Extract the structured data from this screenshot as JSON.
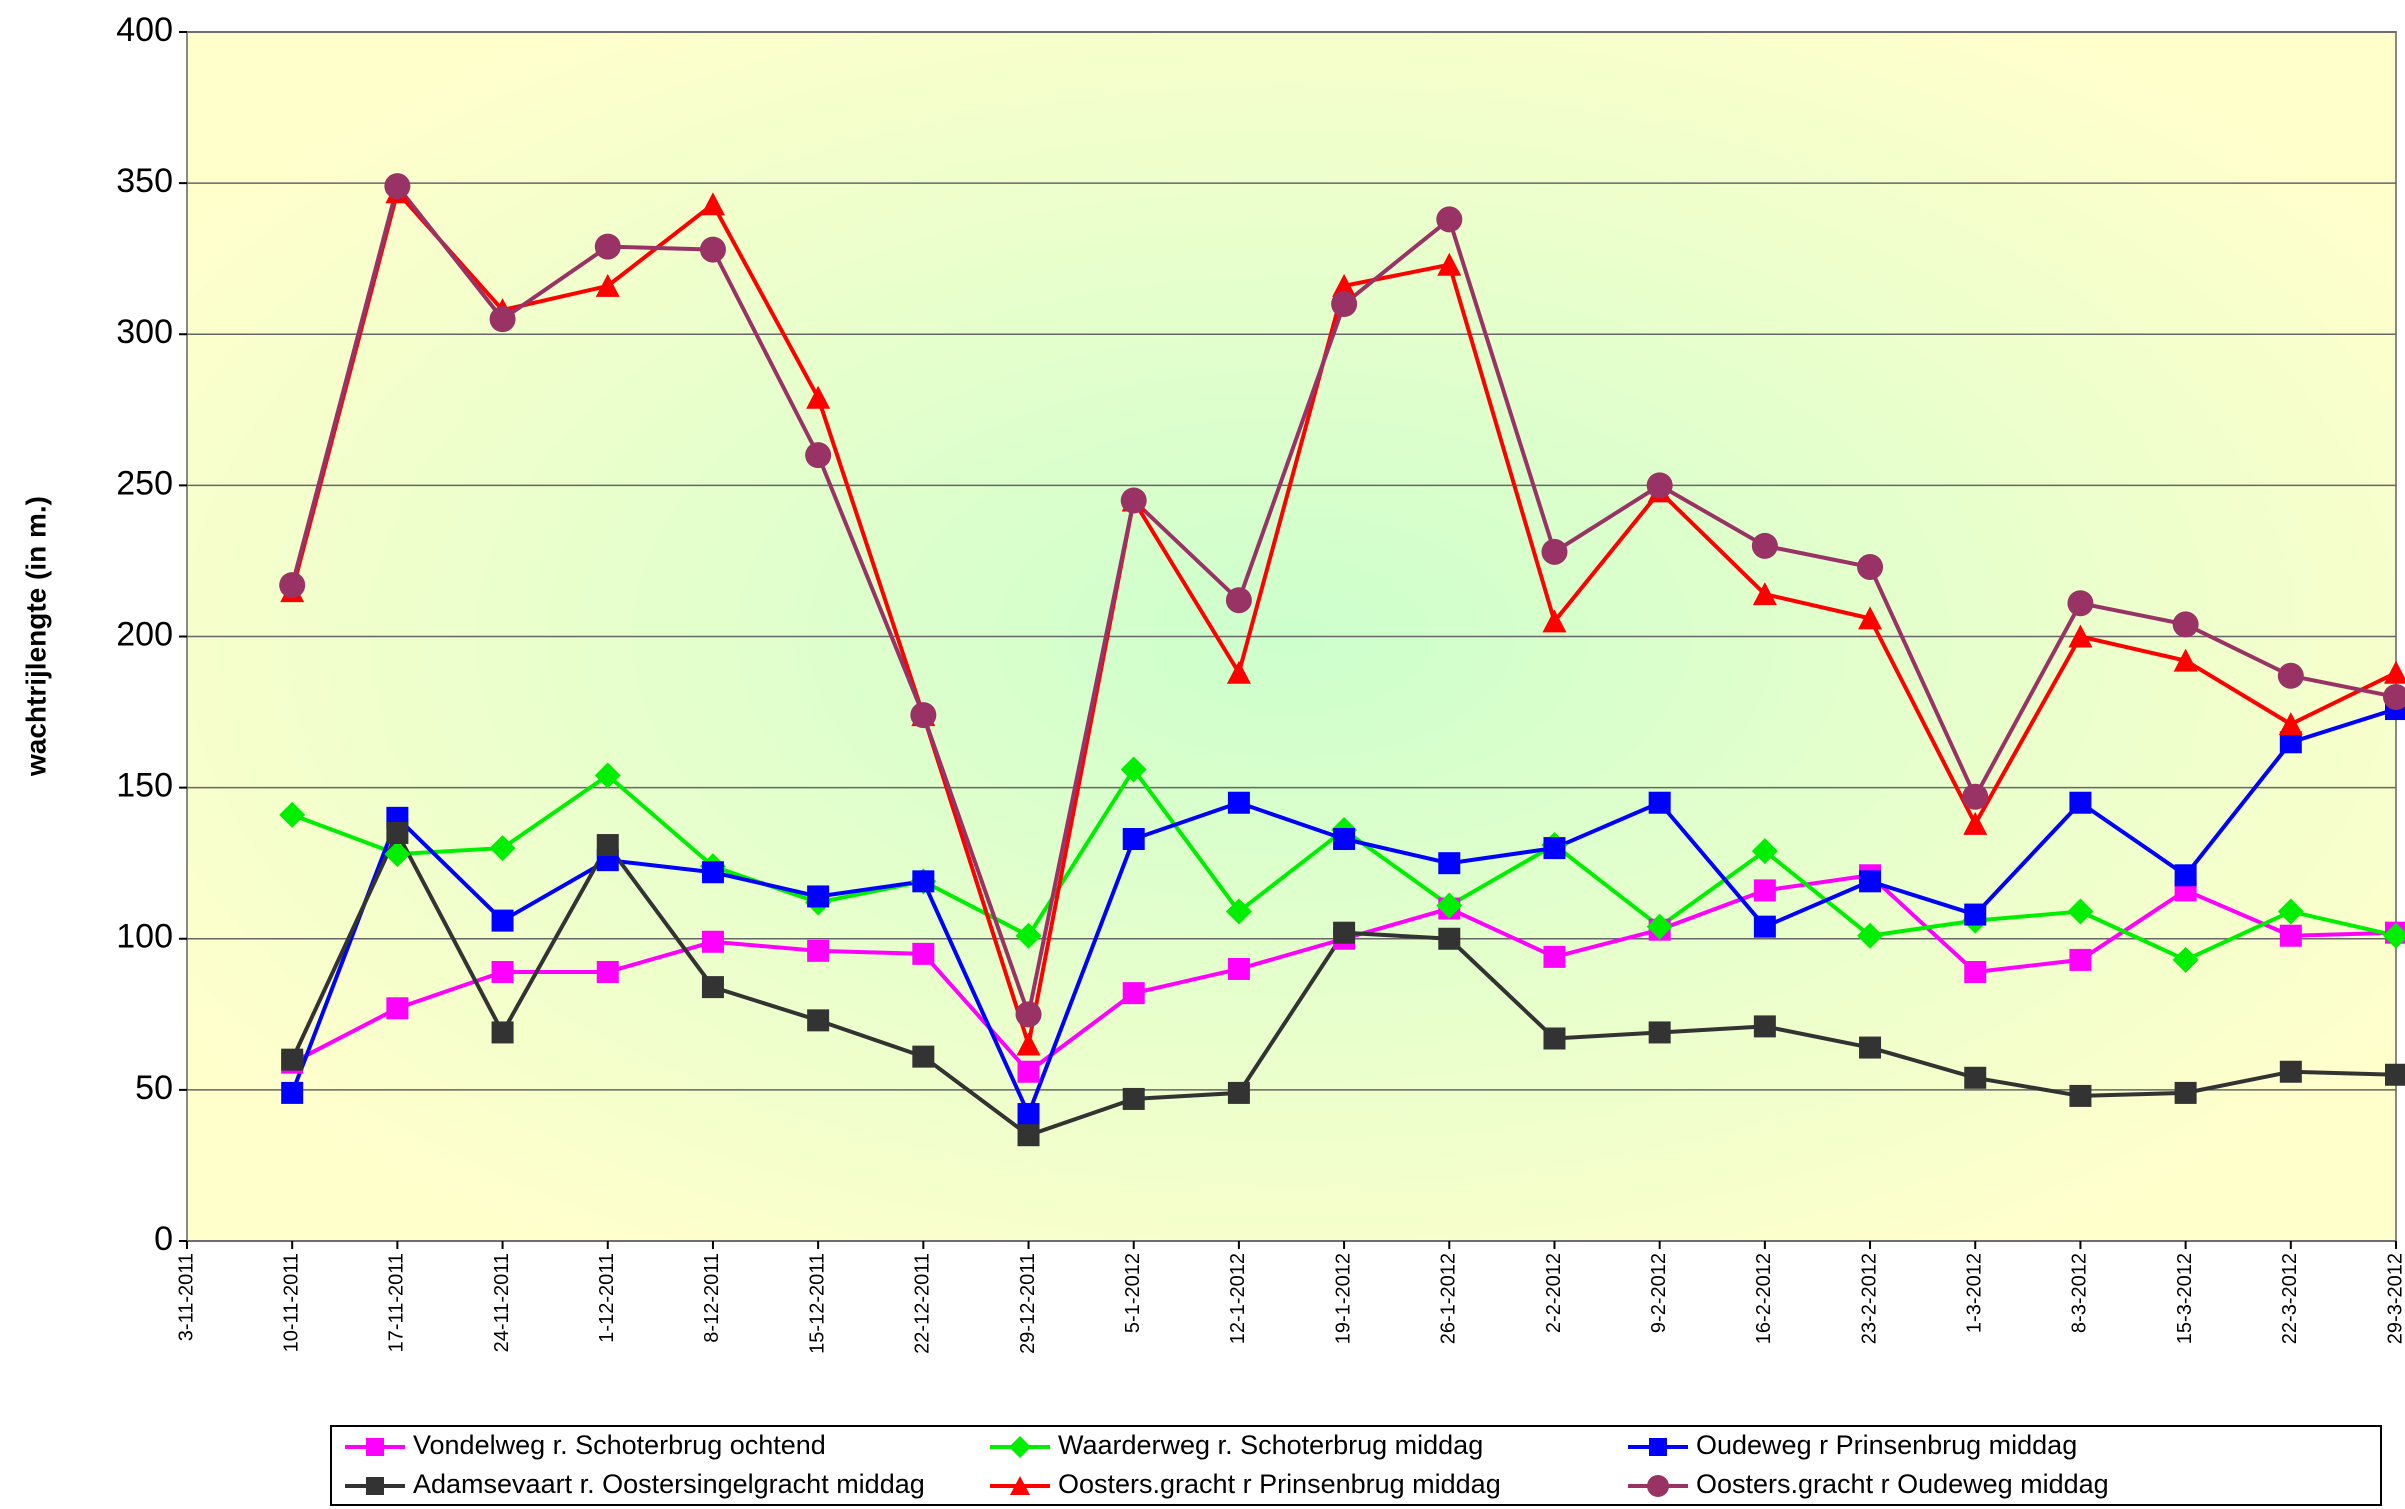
{
  "chart_data": {
    "type": "line",
    "y_label": "wachtrijlengte (in m.)",
    "categories": [
      "3-11-2011",
      "10-11-2011",
      "17-11-2011",
      "24-11-2011",
      "1-12-2011",
      "8-12-2011",
      "15-12-2011",
      "22-12-2011",
      "29-12-2011",
      "5-1-2012",
      "12-1-2012",
      "19-1-2012",
      "26-1-2012",
      "2-2-2012",
      "9-2-2012",
      "16-2-2012",
      "23-2-2012",
      "1-3-2012",
      "8-3-2012",
      "15-3-2012",
      "22-3-2012",
      "29-3-2012"
    ],
    "ylim": [
      0,
      400
    ],
    "yticks": [
      0,
      50,
      100,
      150,
      200,
      250,
      300,
      350,
      400
    ],
    "grid": true,
    "legend": "bottom",
    "series": [
      {
        "name": "Vondelweg r. Schoterbrug ochtend",
        "color": "#ff00ff",
        "marker": "square",
        "values": [
          null,
          59,
          77,
          89,
          89,
          99,
          96,
          95,
          56,
          82,
          90,
          100,
          110,
          94,
          103,
          116,
          121,
          89,
          93,
          116,
          101,
          102
        ]
      },
      {
        "name": "Waarderweg r. Schoterbrug middag",
        "color": "#00ee00",
        "marker": "diamond",
        "values": [
          null,
          141,
          128,
          130,
          154,
          124,
          112,
          119,
          101,
          156,
          109,
          136,
          111,
          131,
          104,
          129,
          101,
          106,
          109,
          93,
          109,
          101
        ]
      },
      {
        "name": "Oudeweg r Prinsenbrug middag",
        "color": "#0000ff",
        "marker": "square",
        "values": [
          null,
          49,
          140,
          106,
          126,
          122,
          114,
          119,
          42,
          133,
          145,
          133,
          125,
          130,
          145,
          104,
          119,
          108,
          145,
          121,
          165,
          176
        ]
      },
      {
        "name": "Adamsevaart r. Oostersingelgracht middag",
        "color": "#333333",
        "marker": "square",
        "values": [
          null,
          60,
          135,
          69,
          131,
          84,
          73,
          61,
          35,
          47,
          49,
          102,
          100,
          67,
          69,
          71,
          64,
          54,
          48,
          49,
          56,
          55
        ]
      },
      {
        "name": "Oosters.gracht r Prinsenbrug middag",
        "color": "#ff0000",
        "marker": "triangle",
        "values": [
          null,
          215,
          347,
          308,
          316,
          343,
          279,
          174,
          65,
          245,
          188,
          316,
          323,
          205,
          248,
          214,
          206,
          138,
          200,
          192,
          171,
          188
        ]
      },
      {
        "name": "Oosters.gracht r Oudeweg middag",
        "color": "#993366",
        "marker": "circle",
        "values": [
          null,
          217,
          349,
          305,
          329,
          328,
          260,
          174,
          75,
          245,
          212,
          310,
          338,
          228,
          250,
          230,
          223,
          147,
          211,
          204,
          187,
          180
        ]
      }
    ]
  }
}
